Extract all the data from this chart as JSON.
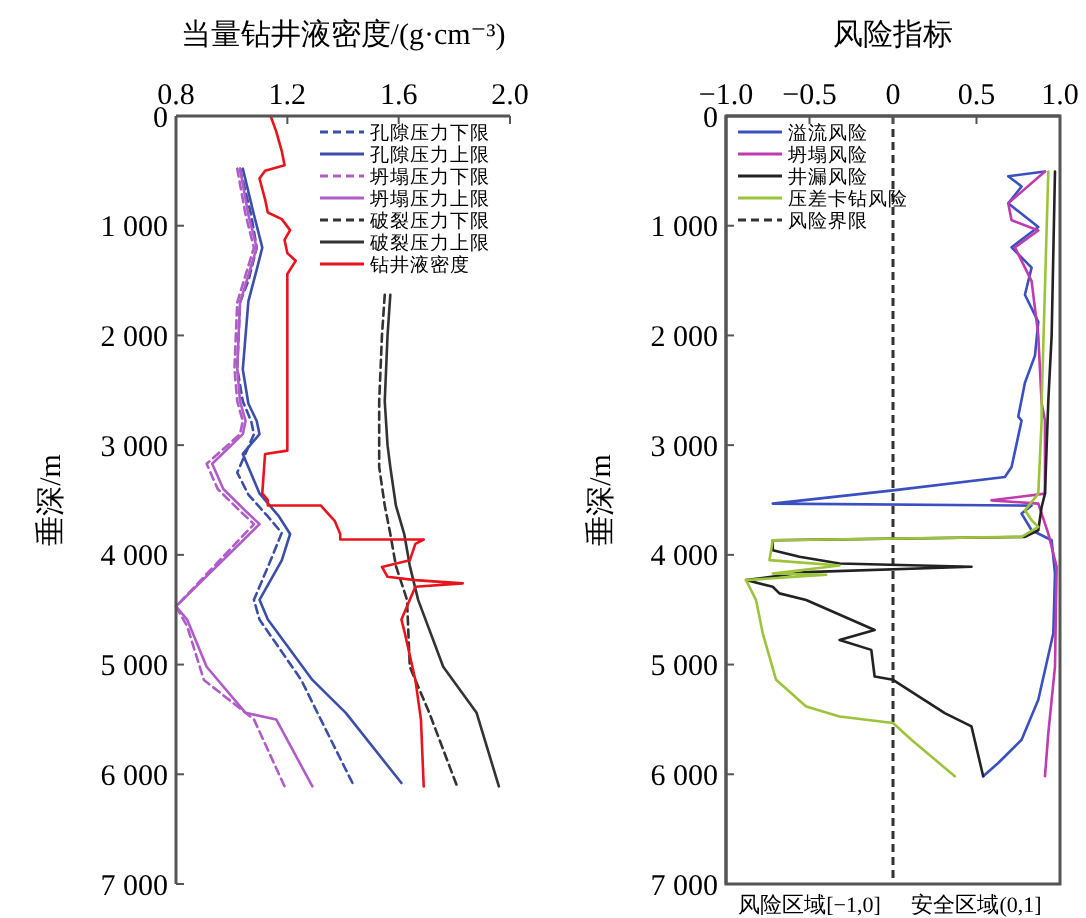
{
  "chart_data": [
    {
      "type": "line",
      "xlabel": "当量钻井液密度/(g·cm⁻³)",
      "ylabel": "垂深/m",
      "xlim": [
        0.8,
        2.0
      ],
      "xticks": [
        0.8,
        1.2,
        1.6,
        {
          "value": 2,
          "label": "2.0"
        }
      ],
      "ylim": [
        7000,
        0
      ],
      "yticks": [
        0,
        {
          "value": 1000,
          "label": "1 000"
        },
        {
          "value": 2000,
          "label": "2 000"
        },
        {
          "value": 3000,
          "label": "3 000"
        },
        {
          "value": 4000,
          "label": "4 000"
        },
        {
          "value": 5000,
          "label": "5 000"
        },
        {
          "value": 6000,
          "label": "6 000"
        },
        {
          "value": 7000,
          "label": "7 000"
        }
      ],
      "legend": "top right",
      "grid": false,
      "series": [
        {
          "name": "孔隙压力下限",
          "color": "#3b4fa8",
          "line_style": "dashed",
          "x": [
            1.03,
            1.07,
            1.09,
            1.06,
            1.03,
            1.02,
            1.04,
            1.07,
            1.08,
            1.02,
            1.06,
            1.13,
            1.18,
            1.14,
            1.08,
            1.1,
            1.25,
            1.32,
            1.44
          ],
          "values": [
            480,
            900,
            1200,
            1500,
            1700,
            2300,
            2600,
            2780,
            2900,
            3250,
            3450,
            3650,
            3800,
            4050,
            4410,
            4590,
            5140,
            5500,
            6110
          ]
        },
        {
          "name": "孔隙压力上限",
          "color": "#3b4fa8",
          "line_style": "solid",
          "x": [
            1.04,
            1.08,
            1.11,
            1.09,
            1.06,
            1.04,
            1.06,
            1.09,
            1.1,
            1.04,
            1.1,
            1.17,
            1.21,
            1.18,
            1.1,
            1.13,
            1.29,
            1.41,
            1.61
          ],
          "values": [
            480,
            900,
            1200,
            1400,
            1690,
            2310,
            2620,
            2780,
            2900,
            3080,
            3440,
            3650,
            3810,
            4050,
            4410,
            4590,
            5140,
            5440,
            6080
          ]
        },
        {
          "name": "坍塌压力下限",
          "color": "#b05cc8",
          "line_style": "dashed",
          "x": [
            1.02,
            1.05,
            1.08,
            1.05,
            1.02,
            1.01,
            1.02,
            1.04,
            1.03,
            0.91,
            0.95,
            1.03,
            1.08,
            0.8,
            0.84,
            0.9,
            1.08,
            1.19
          ],
          "values": [
            480,
            900,
            1200,
            1450,
            1700,
            2300,
            2600,
            2780,
            2900,
            3170,
            3400,
            3600,
            3720,
            4470,
            4650,
            5140,
            5500,
            6110
          ]
        },
        {
          "name": "坍塌压力上限",
          "color": "#b05cc8",
          "line_style": "solid",
          "x": [
            1.03,
            1.06,
            1.09,
            1.06,
            1.03,
            1.02,
            1.03,
            1.05,
            1.04,
            0.93,
            0.97,
            1.05,
            1.1,
            0.8,
            0.84,
            0.91,
            1.05,
            1.16,
            1.29
          ],
          "values": [
            480,
            900,
            1200,
            1450,
            1700,
            2300,
            2600,
            2780,
            2900,
            3170,
            3400,
            3600,
            3720,
            4470,
            4590,
            5020,
            5440,
            5500,
            6110
          ]
        },
        {
          "name": "破裂压力下限",
          "color": "#333333",
          "line_style": "dashed",
          "x": [
            1.55,
            1.54,
            1.53,
            1.53,
            1.55,
            1.57,
            1.59,
            1.63,
            1.64,
            1.71,
            1.81
          ],
          "values": [
            1630,
            2000,
            2600,
            3200,
            3550,
            3810,
            4100,
            4410,
            5020,
            5440,
            6110
          ]
        },
        {
          "name": "破裂压力上限",
          "color": "#333333",
          "line_style": "solid",
          "x": [
            1.57,
            1.56,
            1.55,
            1.56,
            1.57,
            1.59,
            1.62,
            1.64,
            1.67,
            1.76,
            1.88,
            1.96
          ],
          "values": [
            1630,
            2000,
            2600,
            3000,
            3200,
            3550,
            3810,
            4100,
            4410,
            5020,
            5440,
            6110
          ]
        },
        {
          "name": "钻井液密度",
          "color": "#e8141b",
          "line_style": "solid",
          "x": [
            1.14,
            1.16,
            1.18,
            1.19,
            1.12,
            1.1,
            1.12,
            1.13,
            1.18,
            1.21,
            1.19,
            1.2,
            1.23,
            1.2,
            1.2,
            1.12,
            1.11,
            1.13,
            1.13,
            1.32,
            1.37,
            1.39,
            1.39,
            1.69,
            1.66,
            1.64,
            1.54,
            1.56,
            1.66,
            1.83,
            1.66,
            1.64,
            1.61,
            1.62,
            1.66,
            1.68,
            1.69
          ],
          "values": [
            0,
            140,
            320,
            450,
            500,
            570,
            760,
            880,
            940,
            1040,
            1130,
            1250,
            1320,
            1440,
            3050,
            3080,
            3440,
            3500,
            3550,
            3550,
            3690,
            3810,
            3860,
            3860,
            3900,
            4050,
            4110,
            4200,
            4230,
            4260,
            4290,
            4410,
            4590,
            4690,
            5140,
            5500,
            6110
          ]
        }
      ]
    },
    {
      "type": "line",
      "xlabel": "风险指标",
      "ylabel": "垂深/m",
      "xlim": [
        -1.0,
        1.0
      ],
      "xticks": [
        {
          "value": -1,
          "label": "−1.0"
        },
        {
          "value": -0.5,
          "label": "−0.5"
        },
        0,
        0.5,
        {
          "value": 1,
          "label": "1.0"
        }
      ],
      "ylim": [
        7000,
        0
      ],
      "yticks": [
        0,
        {
          "value": 1000,
          "label": "1 000"
        },
        {
          "value": 2000,
          "label": "2 000"
        },
        {
          "value": 3000,
          "label": "3 000"
        },
        {
          "value": 4000,
          "label": "4 000"
        },
        {
          "value": 5000,
          "label": "5 000"
        },
        {
          "value": 6000,
          "label": "6 000"
        },
        {
          "value": 7000,
          "label": "7 000"
        }
      ],
      "legend": "top left",
      "grid": false,
      "ref_lines": [
        {
          "axis": "x",
          "value": 0,
          "label": "风险界限",
          "color": "#333333",
          "line_style": "dashed"
        }
      ],
      "annotations": [
        "风险区域[−1,0]",
        "安全区域(0,1]"
      ],
      "series": [
        {
          "name": "溢流风险",
          "color": "#3a4fc0",
          "x": [
            0.91,
            0.69,
            0.77,
            0.69,
            0.87,
            0.71,
            0.83,
            0.79,
            0.87,
            0.85,
            0.79,
            0.75,
            0.77,
            0.71,
            0.67,
            0.0,
            -0.72,
            0.83,
            0.77,
            0.83,
            0.95,
            0.97,
            0.96,
            0.87,
            0.77,
            0.63,
            0.54
          ],
          "values": [
            506,
            549,
            642,
            796,
            1012,
            1197,
            1382,
            1629,
            1876,
            2184,
            2431,
            2740,
            2776,
            3200,
            3291,
            3412,
            3533,
            3551,
            3624,
            3776,
            3867,
            4170,
            4715,
            5321,
            5685,
            5897,
            6018
          ]
        },
        {
          "name": "坍塌风险",
          "color": "#c03ab0",
          "x": [
            0.91,
            0.69,
            0.71,
            0.87,
            0.73,
            0.83,
            0.87,
            0.89,
            0.91,
            0.91,
            0.59,
            0.87,
            0.93,
            0.98,
            0.97,
            0.93,
            0.91
          ],
          "values": [
            506,
            796,
            950,
            1043,
            1197,
            1505,
            2000,
            2616,
            2776,
            3442,
            3503,
            3533,
            3806,
            4109,
            5018,
            5624,
            6018
          ]
        },
        {
          "name": "井漏风险",
          "color": "#222222",
          "x": [
            0.97,
            0.95,
            0.93,
            0.91,
            0.89,
            0.87,
            0.79,
            -0.72,
            -0.72,
            -0.56,
            -0.32,
            0.47,
            -0.52,
            -0.88,
            -0.72,
            -0.68,
            -0.52,
            -0.11,
            -0.32,
            -0.13,
            -0.11,
            0.0,
            0.31,
            0.47,
            0.54
          ],
          "values": [
            506,
            2000,
            2594,
            3442,
            3564,
            3776,
            3836,
            3867,
            3957,
            4018,
            4079,
            4109,
            4157,
            4230,
            4291,
            4351,
            4412,
            4685,
            4776,
            4866,
            5109,
            5139,
            5442,
            5564,
            6018
          ]
        },
        {
          "name": "压差卡钻风险",
          "color": "#9cc43a",
          "x": [
            0.93,
            0.89,
            0.89,
            0.87,
            0.79,
            0.83,
            0.87,
            0.77,
            -0.72,
            -0.74,
            -0.32,
            -0.72,
            -0.4,
            -0.88,
            -0.82,
            -0.78,
            -0.7,
            -0.52,
            -0.32,
            0.0,
            0.11,
            0.37
          ],
          "values": [
            506,
            2616,
            2776,
            3442,
            3594,
            3685,
            3745,
            3836,
            3867,
            4048,
            4097,
            4170,
            4182,
            4230,
            4412,
            4715,
            5139,
            5382,
            5473,
            5533,
            5685,
            6018
          ]
        }
      ]
    }
  ]
}
